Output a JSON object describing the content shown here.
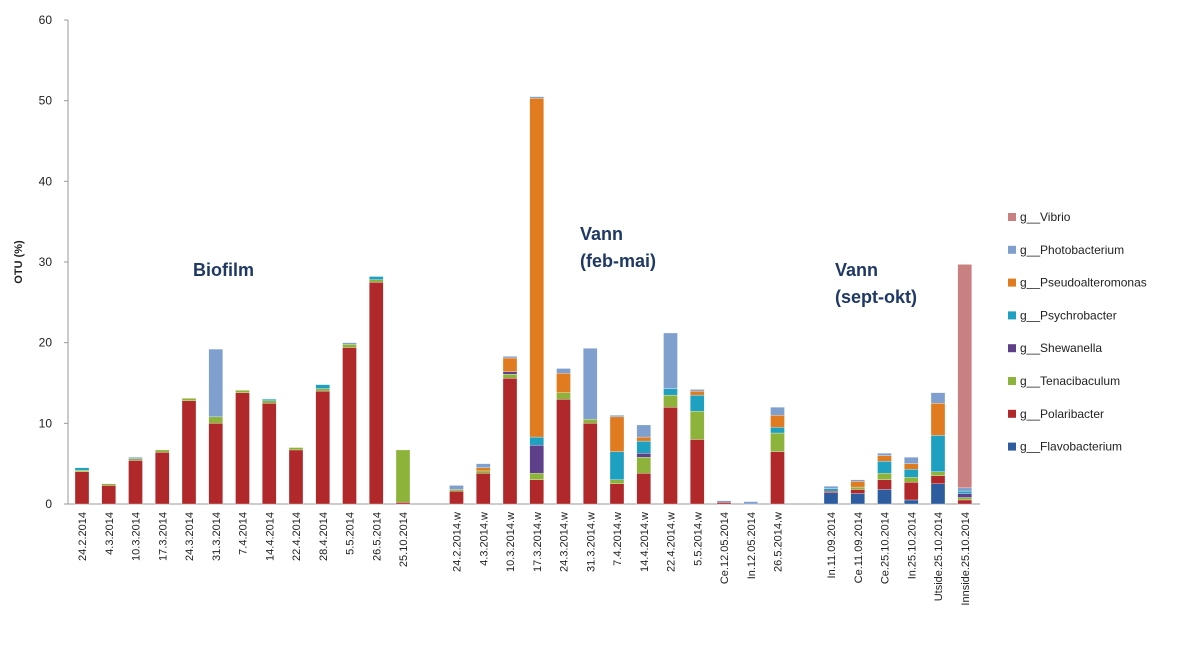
{
  "chart_data": {
    "type": "stacked_bar",
    "ylabel": "OTU (%)",
    "ylim": [
      0,
      60
    ],
    "yticks": [
      0,
      10,
      20,
      30,
      40,
      50,
      60
    ],
    "legend": "right",
    "annotations": [
      [
        "Biofilm"
      ],
      [
        "Vann",
        "(feb-mai)"
      ],
      [
        "Vann",
        "(sept-okt)"
      ]
    ],
    "categories": [
      "24.2.2014",
      "4.3.2014",
      "10.3.2014",
      "17.3.2014",
      "24.3.2014",
      "31.3.2014",
      "7.4.2014",
      "14.4.2014",
      "22.4.2014",
      "28.4.2014",
      "5.5.2014",
      "26.5.2014",
      "25.10.2014",
      null,
      "24.2.2014.w",
      "4.3.2014.w",
      "10.3.2014.w",
      "17.3.2014.w",
      "24.3.2014.w",
      "31.3.2014.w",
      "7.4.2014.w",
      "14.4.2014.w",
      "22.4.2014.w",
      "5.5.2014.w",
      "Ce.12.05.2014",
      "In.12.05.2014",
      "26.5.2014.w",
      null,
      "In.11.09.2014",
      "Ce.11.09.2014",
      "Ce.25.10.2014",
      "In.25.10.2014",
      "Utside.25.10.2014",
      "Innside.25.10.2014"
    ],
    "series": [
      {
        "name": "g__Flavobacterium",
        "color": "#2e5d9f",
        "values": [
          0,
          0,
          0,
          0,
          0,
          0,
          0,
          0,
          0,
          0,
          0,
          0,
          0,
          null,
          0,
          0,
          0,
          0,
          0,
          0,
          0,
          0,
          0,
          0,
          0,
          0,
          0,
          null,
          1.4,
          1.3,
          1.8,
          0.5,
          2.5,
          0
        ]
      },
      {
        "name": "g__Polaribacter",
        "color": "#b0282a",
        "values": [
          4,
          2.3,
          5.4,
          6.4,
          12.8,
          10,
          13.8,
          12.5,
          6.7,
          14,
          19.4,
          27.5,
          0.2,
          null,
          1.6,
          3.8,
          15.6,
          3,
          13,
          10,
          2.5,
          3.8,
          12,
          8,
          0.2,
          0,
          6.5,
          null,
          0.2,
          0.5,
          1.2,
          2.2,
          1,
          0.5
        ]
      },
      {
        "name": "g__Tenacibaculum",
        "color": "#8db33a",
        "values": [
          0.2,
          0.2,
          0.2,
          0.3,
          0.3,
          0.8,
          0.3,
          0.3,
          0.3,
          0.3,
          0.4,
          0.3,
          6.5,
          null,
          0.2,
          0.3,
          0.5,
          0.8,
          0.8,
          0.5,
          0.5,
          2,
          1.5,
          3.5,
          0,
          0,
          2.3,
          null,
          0,
          0.3,
          0.8,
          0.6,
          0.5,
          0.3
        ]
      },
      {
        "name": "g__Shewanella",
        "color": "#5e3f8a",
        "values": [
          0,
          0,
          0,
          0,
          0,
          0,
          0,
          0,
          0,
          0,
          0,
          0,
          0,
          null,
          0,
          0,
          0.3,
          3.5,
          0,
          0,
          0,
          0.5,
          0,
          0,
          0,
          0,
          0,
          null,
          0,
          0,
          0,
          0,
          0,
          0.5
        ]
      },
      {
        "name": "g__Psychrobacter",
        "color": "#1ea0c0",
        "values": [
          0.3,
          0,
          0,
          0,
          0,
          0,
          0,
          0.2,
          0,
          0.5,
          0,
          0.4,
          0,
          null,
          0,
          0,
          0,
          1,
          0,
          0,
          3.5,
          1.5,
          0.8,
          2,
          0,
          0,
          0.7,
          null,
          0.3,
          0,
          1.5,
          1,
          4.5,
          0.3
        ]
      },
      {
        "name": "g__Pseudoalteromonas",
        "color": "#e07b1f",
        "values": [
          0,
          0,
          0,
          0,
          0,
          0,
          0,
          0,
          0,
          0,
          0,
          0,
          0,
          null,
          0,
          0.4,
          1.7,
          42,
          2.4,
          0,
          4.3,
          0.5,
          0,
          0.5,
          0,
          0,
          1.5,
          null,
          0,
          0.7,
          0.7,
          0.7,
          4,
          0
        ]
      },
      {
        "name": "g__Photobacterium",
        "color": "#7f9fcf",
        "values": [
          0,
          0,
          0.2,
          0,
          0,
          8.4,
          0,
          0,
          0,
          0,
          0.2,
          0,
          0,
          null,
          0.5,
          0.5,
          0.2,
          0.2,
          0.6,
          8.8,
          0.2,
          1.5,
          6.9,
          0.2,
          0.2,
          0.3,
          1,
          null,
          0.3,
          0.2,
          0.3,
          0.8,
          1.3,
          0.4
        ]
      },
      {
        "name": "g__Vibrio",
        "color": "#c98080",
        "values": [
          0,
          0,
          0,
          0,
          0,
          0,
          0,
          0,
          0,
          0,
          0,
          0,
          0,
          null,
          0,
          0,
          0,
          0,
          0,
          0,
          0,
          0,
          0,
          0,
          0,
          0,
          0,
          null,
          0,
          0,
          0,
          0,
          0,
          27.7
        ]
      }
    ]
  }
}
